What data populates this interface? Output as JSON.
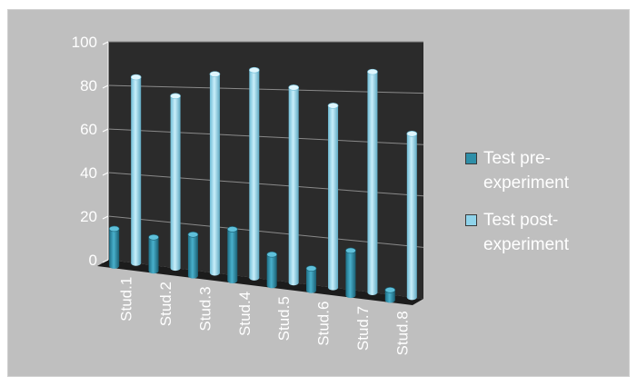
{
  "chart_data": {
    "type": "bar",
    "title": "",
    "xlabel": "",
    "ylabel": "",
    "categories": [
      "Stud.1",
      "Stud.2",
      "Stud.3",
      "Stud.4",
      "Stud.5",
      "Stud.6",
      "Stud.7",
      "Stud.8"
    ],
    "series": [
      {
        "name": "Test pre-experiment",
        "values": [
          17,
          15,
          18,
          22,
          13,
          9,
          18,
          4
        ],
        "color": "#2f8fa8"
      },
      {
        "name": "Test post-experiment",
        "values": [
          84,
          76,
          86,
          88,
          81,
          74,
          88,
          64
        ],
        "color": "#8fd3ea"
      }
    ],
    "y_ticks": [
      "0",
      "20",
      "40",
      "60",
      "80",
      "100"
    ],
    "ylim": [
      0,
      100
    ],
    "grid": true,
    "legend_position": "right",
    "colors": {
      "frame_bg": "#bfbfbf",
      "plot_bg": "#2b2b2b",
      "text": "#ffffff"
    }
  },
  "legend": {
    "items": [
      {
        "label": "Test pre-experiment",
        "line1": "Test pre-",
        "line2": "experiment"
      },
      {
        "label": "Test post-experiment",
        "line1": "Test post-",
        "line2": "experiment"
      }
    ]
  }
}
